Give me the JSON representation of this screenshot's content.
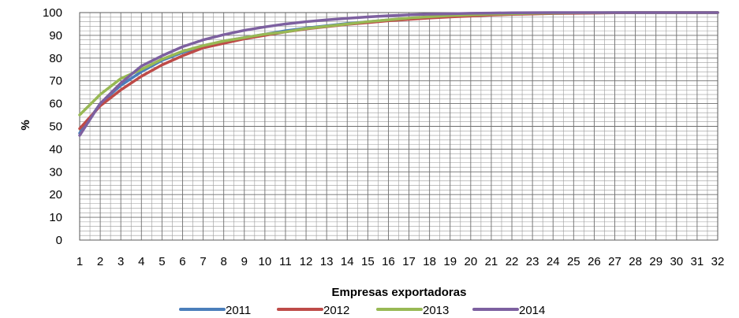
{
  "chart_data": {
    "type": "line",
    "title": "",
    "xlabel": "Empresas exportadoras",
    "ylabel": "%",
    "x": [
      1,
      2,
      3,
      4,
      5,
      6,
      7,
      8,
      9,
      10,
      11,
      12,
      13,
      14,
      15,
      16,
      17,
      18,
      19,
      20,
      21,
      22,
      23,
      24,
      25,
      26,
      27,
      28,
      29,
      30,
      31,
      32
    ],
    "ylim": [
      0,
      100
    ],
    "yticks": [
      0,
      10,
      20,
      30,
      40,
      50,
      60,
      70,
      80,
      90,
      100
    ],
    "grid": true,
    "minor_grid": true,
    "legend_position": "bottom",
    "series": [
      {
        "name": "2011",
        "color": "#4a7ebb",
        "values": [
          47,
          60,
          68,
          74,
          79,
          82.5,
          85,
          87.5,
          89,
          90.5,
          92,
          93.2,
          94.2,
          95.2,
          96,
          96.8,
          97.4,
          98,
          98.4,
          98.8,
          99.1,
          99.4,
          99.6,
          99.7,
          99.8,
          99.9,
          99.95,
          100,
          100,
          100,
          100,
          100
        ]
      },
      {
        "name": "2012",
        "color": "#be4b48",
        "values": [
          49,
          59,
          66,
          72,
          77,
          81,
          84.5,
          86.5,
          88.5,
          90,
          91.5,
          92.8,
          93.8,
          94.8,
          95.6,
          96.4,
          97,
          97.6,
          98.1,
          98.5,
          98.9,
          99.2,
          99.4,
          99.6,
          99.7,
          99.8,
          99.9,
          100,
          100,
          100,
          100,
          100
        ]
      },
      {
        "name": "2013",
        "color": "#98b954",
        "values": [
          55,
          64,
          71,
          75,
          79.5,
          83,
          85.5,
          87.5,
          89,
          90.5,
          91.5,
          93,
          94,
          95,
          96,
          96.8,
          97.6,
          98.2,
          98.7,
          99,
          99.3,
          99.5,
          99.7,
          99.8,
          99.9,
          99.95,
          100,
          100,
          100,
          100,
          100,
          100
        ]
      },
      {
        "name": "2014",
        "color": "#7d60a0",
        "values": [
          46,
          60,
          69,
          76.5,
          81,
          85,
          88,
          90.3,
          92.2,
          93.7,
          95,
          96,
          96.8,
          97.5,
          98.1,
          98.6,
          99,
          99.3,
          99.5,
          99.7,
          99.8,
          99.9,
          99.95,
          100,
          100,
          100,
          100,
          100,
          100,
          100,
          100,
          100
        ]
      }
    ]
  }
}
